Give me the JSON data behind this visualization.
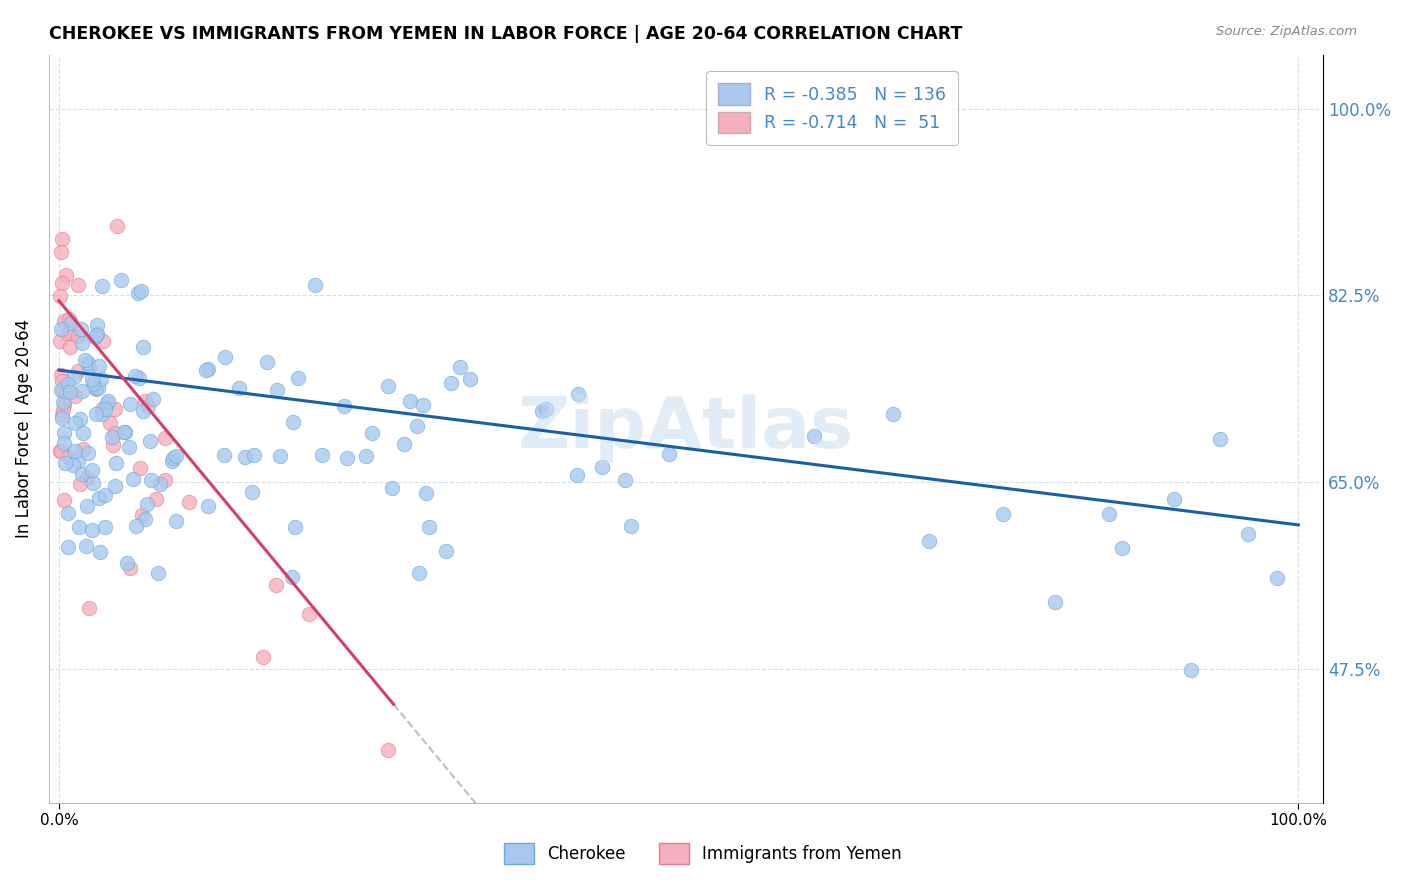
{
  "title": "CHEROKEE VS IMMIGRANTS FROM YEMEN IN LABOR FORCE | AGE 20-64 CORRELATION CHART",
  "source": "Source: ZipAtlas.com",
  "ylabel": "In Labor Force | Age 20-64",
  "cherokee_R": -0.385,
  "cherokee_N": 136,
  "yemen_R": -0.714,
  "yemen_N": 51,
  "cherokee_color": "#a8c8f0",
  "cherokee_edge": "#6aaad4",
  "yemen_color": "#f4b0bc",
  "yemen_edge": "#e87890",
  "trend_cherokee_color": "#1a5faa",
  "trend_yemen_color": "#d4406a",
  "trend_yemen_dashed_color": "#c8b8c8",
  "background_color": "#ffffff",
  "grid_color": "#c8d8e8",
  "right_label_color": "#4488cc",
  "watermark_color": "#c8ddf0",
  "xlim": [
    0.0,
    1.0
  ],
  "ylim": [
    0.35,
    1.05
  ],
  "yticks": [
    0.475,
    0.65,
    0.825,
    1.0
  ],
  "ytick_labels": [
    "47.5%",
    "65.0%",
    "82.5%",
    "100.0%"
  ]
}
